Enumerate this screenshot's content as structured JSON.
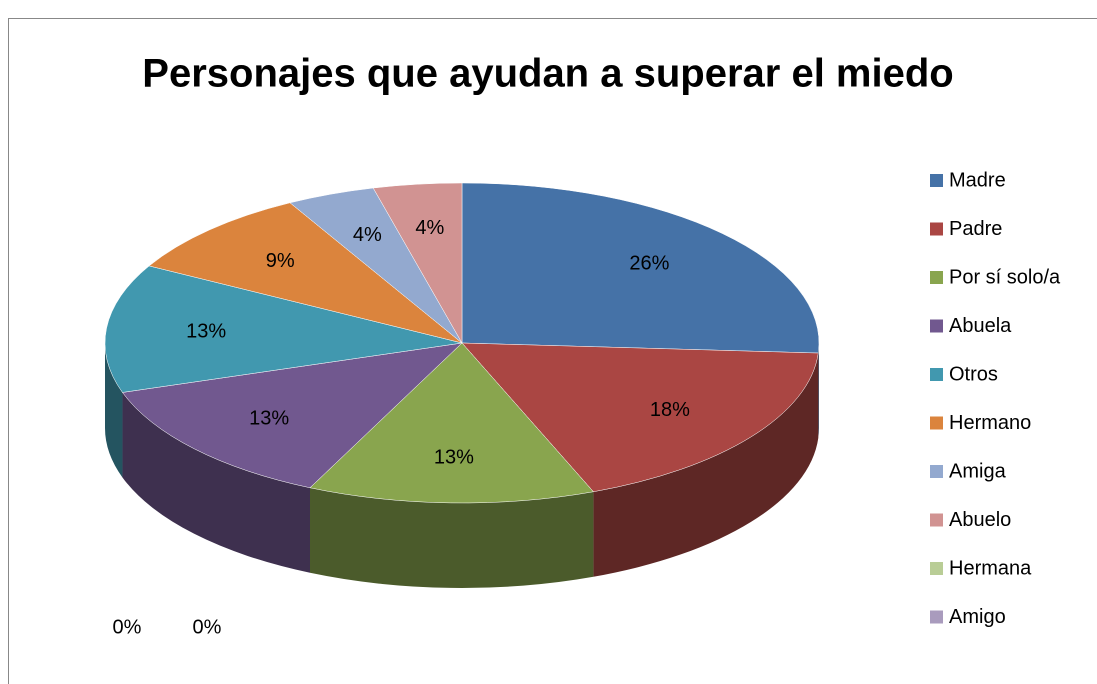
{
  "chart_data": {
    "type": "pie3d",
    "title": "Personajes que ayudan a superar el miedo",
    "categories": [
      "Madre",
      "Padre",
      "Por sí solo/a",
      "Abuela",
      "Otros",
      "Hermano",
      "Amiga",
      "Abuelo",
      "Hermana",
      "Amigo"
    ],
    "values": [
      26,
      18,
      13,
      13,
      13,
      9,
      4,
      4,
      0,
      0
    ],
    "value_labels": [
      "26%",
      "18%",
      "13%",
      "13%",
      "13%",
      "9%",
      "4%",
      "4%",
      "0%",
      "0%"
    ],
    "colors": [
      "#4572a7",
      "#aa4643",
      "#89a54e",
      "#71588f",
      "#4198af",
      "#db843d",
      "#93a9cf",
      "#d19392",
      "#b9cd96",
      "#a99bbd"
    ],
    "legend": "right"
  }
}
